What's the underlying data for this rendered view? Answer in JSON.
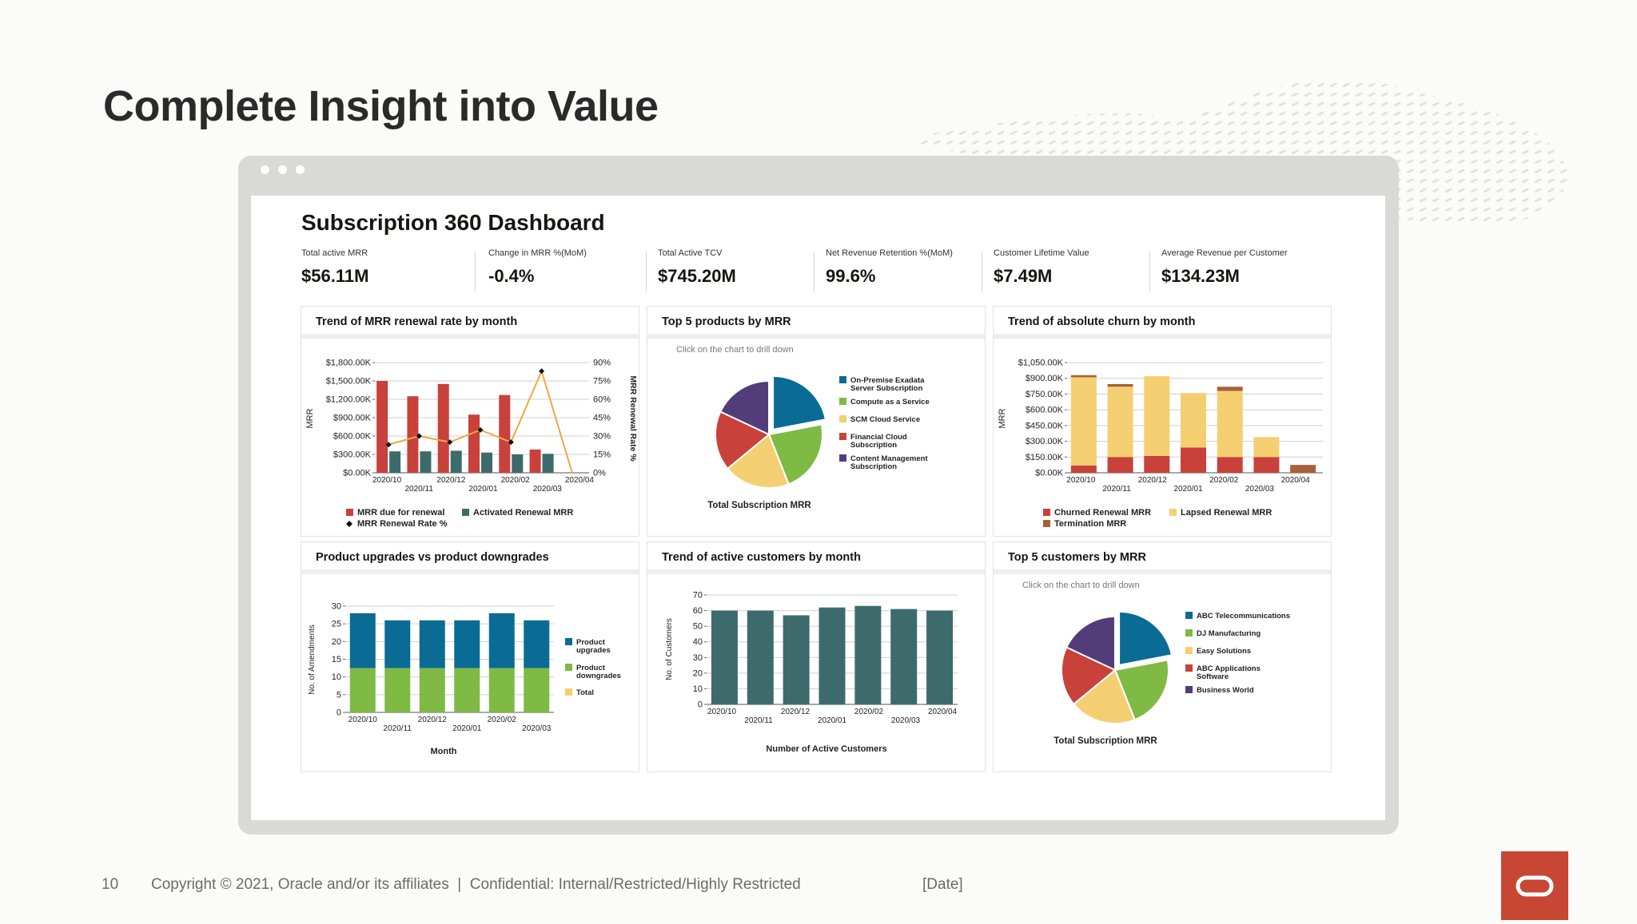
{
  "slide": {
    "title": "Complete Insight into Value",
    "page_number": "10",
    "copyright": "Copyright © 2021, Oracle and/or its affiliates  |  Confidential: Internal/Restricted/Highly Restricted",
    "date": "[Date]"
  },
  "dashboard": {
    "title": "Subscription 360 Dashboard",
    "kpis": [
      {
        "label": "Total active MRR",
        "value": "$56.11M"
      },
      {
        "label": "Change in MRR %(MoM)",
        "value": "-0.4%"
      },
      {
        "label": "Total Active TCV",
        "value": "$745.20M"
      },
      {
        "label": "Net Revenue Retention %(MoM)",
        "value": "99.6%"
      },
      {
        "label": "Customer Lifetime Value",
        "value": "$7.49M"
      },
      {
        "label": "Average Revenue per Customer",
        "value": "$134.23M"
      }
    ]
  },
  "colors": {
    "red": "#c8413a",
    "teal": "#3d6b6b",
    "orange": "#f0a845",
    "yellow": "#f4cf72",
    "blue": "#0a6c94",
    "green": "#7fba45",
    "purple": "#523d7a",
    "brown": "#a8603a",
    "oracle_red": "#c74634"
  },
  "chart_data": [
    {
      "id": "renewal",
      "title": "Trend of MRR renewal rate by month",
      "type": "bar",
      "categories": [
        "2020/10",
        "2020/11",
        "2020/12",
        "2020/01",
        "2020/02",
        "2020/03",
        "2020/04"
      ],
      "y_ticks": [
        "$0.00K",
        "$300.00K",
        "$600.00K",
        "$900.00K",
        "$1,200.00K",
        "$1,500.00K",
        "$1,800.00K"
      ],
      "y2_ticks": [
        "0%",
        "15%",
        "30%",
        "45%",
        "60%",
        "75%",
        "90%"
      ],
      "ylabel": "MRR",
      "y2label": "MRR Renewal Rate %",
      "ylim": [
        0,
        1800
      ],
      "y2lim": [
        0,
        90
      ],
      "series": [
        {
          "name": "MRR due for renewal",
          "values": [
            1500,
            1250,
            1450,
            950,
            1270,
            380,
            0
          ]
        },
        {
          "name": "Activated Renewal MRR",
          "values": [
            350,
            350,
            360,
            330,
            300,
            310,
            0
          ]
        },
        {
          "name": "MRR Renewal Rate %",
          "values": [
            23,
            30,
            25,
            35,
            25,
            83,
            0
          ]
        }
      ]
    },
    {
      "id": "products",
      "title": "Top 5 products by MRR",
      "type": "pie",
      "subtitle": "Click on the chart to drill down",
      "xlabel": "Total Subscription MRR",
      "labels": [
        "On-Premise Exadata Server Subscription",
        "Compute as a Service",
        "SCM Cloud Service",
        "Financial Cloud Subscription",
        "Content Management Subscription"
      ],
      "values": [
        22,
        22,
        20,
        18,
        18
      ]
    },
    {
      "id": "churn",
      "title": "Trend of absolute churn by month",
      "type": "bar",
      "categories": [
        "2020/10",
        "2020/11",
        "2020/12",
        "2020/01",
        "2020/02",
        "2020/03",
        "2020/04"
      ],
      "y_ticks": [
        "$0.00K",
        "$150.00K",
        "$300.00K",
        "$450.00K",
        "$600.00K",
        "$750.00K",
        "$900.00K",
        "$1,050.00K"
      ],
      "ylabel": "MRR",
      "ylim": [
        0,
        1050
      ],
      "series": [
        {
          "name": "Churned Renewal MRR",
          "values": [
            70,
            150,
            160,
            240,
            150,
            150,
            0
          ]
        },
        {
          "name": "Lapsed Renewal MRR",
          "values": [
            840,
            670,
            760,
            520,
            630,
            190,
            0
          ]
        },
        {
          "name": "Termination MRR",
          "values": [
            20,
            25,
            0,
            0,
            40,
            0,
            75
          ]
        }
      ]
    },
    {
      "id": "upgrades",
      "title": "Product upgrades vs product downgrades",
      "type": "bar",
      "categories": [
        "2020/10",
        "2020/11",
        "2020/12",
        "2020/01",
        "2020/02",
        "2020/03"
      ],
      "y_ticks": [
        "0",
        "5",
        "10",
        "15",
        "20",
        "25",
        "30"
      ],
      "ylabel": "No. of Amendments",
      "xlabel": "Month",
      "ylim": [
        0,
        30
      ],
      "series": [
        {
          "name": "Product upgrades",
          "values": [
            15.5,
            13.5,
            13.5,
            13.5,
            15.5,
            13.5
          ]
        },
        {
          "name": "Product downgrades",
          "values": [
            12.5,
            12.5,
            12.5,
            12.5,
            12.5,
            12.5
          ]
        },
        {
          "name": "Total",
          "values": [
            28,
            26,
            26,
            26,
            28,
            26
          ]
        }
      ]
    },
    {
      "id": "active",
      "title": "Trend of active customers by month",
      "type": "bar",
      "categories": [
        "2020/10",
        "2020/11",
        "2020/12",
        "2020/01",
        "2020/02",
        "2020/03",
        "2020/04"
      ],
      "y_ticks": [
        "0",
        "10",
        "20",
        "30",
        "40",
        "50",
        "60",
        "70"
      ],
      "ylabel": "No. of Customers",
      "xlabel": "Number of Active Customers",
      "ylim": [
        0,
        70
      ],
      "values": [
        60,
        60,
        57,
        62,
        63,
        61,
        60
      ]
    },
    {
      "id": "customers",
      "title": "Top 5 customers by MRR",
      "type": "pie",
      "subtitle": "Click on the chart to drill down",
      "xlabel": "Total Subscription MRR",
      "labels": [
        "ABC Telecommunications",
        "DJ Manufacturing",
        "Easy Solutions",
        "ABC Applications Software",
        "Business World"
      ],
      "values": [
        22,
        22,
        20,
        18,
        18
      ]
    }
  ]
}
